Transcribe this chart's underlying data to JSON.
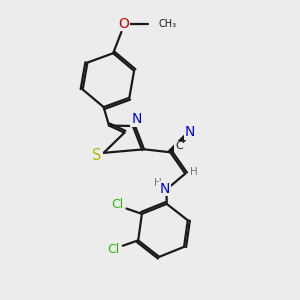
{
  "background_color": "#ececec",
  "bond_color": "#1a1a1a",
  "atom_colors": {
    "N": "#0000ee",
    "O": "#cc0000",
    "S": "#b8b800",
    "Cl": "#33bb00",
    "C": "#1a1a1a",
    "H": "#777777"
  },
  "lw": 1.6,
  "fs": 9.0
}
